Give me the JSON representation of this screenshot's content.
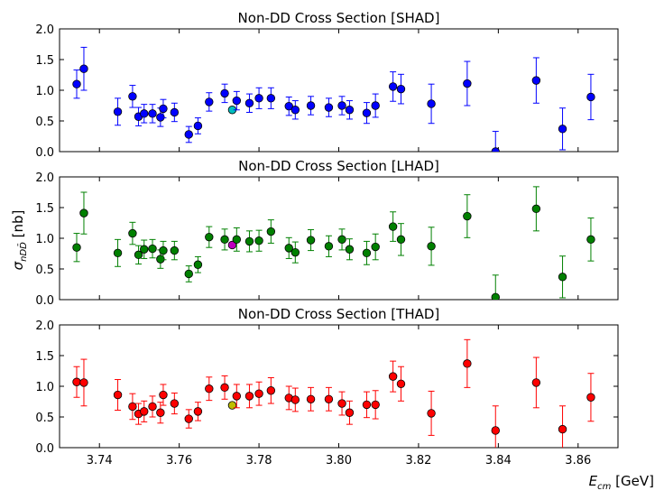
{
  "chart_data": [
    {
      "type": "scatter",
      "title": "Non-DD Cross Section [SHAD]",
      "ylim": [
        0,
        2.0
      ],
      "xlim": [
        3.73,
        3.87
      ],
      "color": "#0000ff",
      "highlight_color": "#00bfbf",
      "points": [
        {
          "x": 3.7343,
          "y": 1.1,
          "err": 0.23
        },
        {
          "x": 3.7361,
          "y": 1.35,
          "err": 0.35
        },
        {
          "x": 3.7446,
          "y": 0.65,
          "err": 0.22
        },
        {
          "x": 3.7483,
          "y": 0.9,
          "err": 0.18
        },
        {
          "x": 3.7498,
          "y": 0.57,
          "err": 0.15
        },
        {
          "x": 3.7512,
          "y": 0.62,
          "err": 0.15
        },
        {
          "x": 3.7533,
          "y": 0.62,
          "err": 0.15
        },
        {
          "x": 3.7553,
          "y": 0.56,
          "err": 0.15
        },
        {
          "x": 3.756,
          "y": 0.7,
          "err": 0.15
        },
        {
          "x": 3.7588,
          "y": 0.64,
          "err": 0.15
        },
        {
          "x": 3.7624,
          "y": 0.28,
          "err": 0.13
        },
        {
          "x": 3.7647,
          "y": 0.42,
          "err": 0.13
        },
        {
          "x": 3.7675,
          "y": 0.81,
          "err": 0.15
        },
        {
          "x": 3.7714,
          "y": 0.95,
          "err": 0.15
        },
        {
          "x": 3.7733,
          "y": 0.68,
          "err": 0.0,
          "highlight": true
        },
        {
          "x": 3.7744,
          "y": 0.83,
          "err": 0.15
        },
        {
          "x": 3.7776,
          "y": 0.79,
          "err": 0.15
        },
        {
          "x": 3.78,
          "y": 0.87,
          "err": 0.17
        },
        {
          "x": 3.783,
          "y": 0.87,
          "err": 0.17
        },
        {
          "x": 3.7875,
          "y": 0.74,
          "err": 0.15
        },
        {
          "x": 3.7891,
          "y": 0.68,
          "err": 0.15
        },
        {
          "x": 3.793,
          "y": 0.75,
          "err": 0.15
        },
        {
          "x": 3.7975,
          "y": 0.72,
          "err": 0.15
        },
        {
          "x": 3.8008,
          "y": 0.75,
          "err": 0.15
        },
        {
          "x": 3.8027,
          "y": 0.68,
          "err": 0.15
        },
        {
          "x": 3.807,
          "y": 0.63,
          "err": 0.17
        },
        {
          "x": 3.8092,
          "y": 0.75,
          "err": 0.19
        },
        {
          "x": 3.8136,
          "y": 1.06,
          "err": 0.24
        },
        {
          "x": 3.8156,
          "y": 1.02,
          "err": 0.24
        },
        {
          "x": 3.8232,
          "y": 0.78,
          "err": 0.32
        },
        {
          "x": 3.8322,
          "y": 1.11,
          "err": 0.36
        },
        {
          "x": 3.8393,
          "y": 0.0,
          "err": 0.33
        },
        {
          "x": 3.8495,
          "y": 1.16,
          "err": 0.37
        },
        {
          "x": 3.8561,
          "y": 0.37,
          "err": 0.34
        },
        {
          "x": 3.8632,
          "y": 0.89,
          "err": 0.37
        }
      ]
    },
    {
      "type": "scatter",
      "title": "Non-DD Cross Section [LHAD]",
      "ylim": [
        0,
        2.0
      ],
      "xlim": [
        3.73,
        3.87
      ],
      "color": "#008000",
      "highlight_color": "#bf00bf",
      "points": [
        {
          "x": 3.7343,
          "y": 0.85,
          "err": 0.23
        },
        {
          "x": 3.7361,
          "y": 1.41,
          "err": 0.34
        },
        {
          "x": 3.7446,
          "y": 0.76,
          "err": 0.22
        },
        {
          "x": 3.7483,
          "y": 1.08,
          "err": 0.18
        },
        {
          "x": 3.7498,
          "y": 0.73,
          "err": 0.15
        },
        {
          "x": 3.7512,
          "y": 0.82,
          "err": 0.15
        },
        {
          "x": 3.7533,
          "y": 0.83,
          "err": 0.15
        },
        {
          "x": 3.7553,
          "y": 0.66,
          "err": 0.15
        },
        {
          "x": 3.756,
          "y": 0.8,
          "err": 0.15
        },
        {
          "x": 3.7588,
          "y": 0.8,
          "err": 0.15
        },
        {
          "x": 3.7624,
          "y": 0.42,
          "err": 0.13
        },
        {
          "x": 3.7647,
          "y": 0.57,
          "err": 0.13
        },
        {
          "x": 3.7675,
          "y": 1.02,
          "err": 0.17
        },
        {
          "x": 3.7714,
          "y": 0.98,
          "err": 0.17
        },
        {
          "x": 3.7733,
          "y": 0.89,
          "err": 0.0,
          "highlight": true
        },
        {
          "x": 3.7744,
          "y": 0.98,
          "err": 0.19
        },
        {
          "x": 3.7776,
          "y": 0.95,
          "err": 0.17
        },
        {
          "x": 3.78,
          "y": 0.96,
          "err": 0.17
        },
        {
          "x": 3.783,
          "y": 1.11,
          "err": 0.19
        },
        {
          "x": 3.7875,
          "y": 0.84,
          "err": 0.17
        },
        {
          "x": 3.7891,
          "y": 0.77,
          "err": 0.17
        },
        {
          "x": 3.793,
          "y": 0.97,
          "err": 0.17
        },
        {
          "x": 3.7975,
          "y": 0.87,
          "err": 0.17
        },
        {
          "x": 3.8008,
          "y": 0.98,
          "err": 0.17
        },
        {
          "x": 3.8027,
          "y": 0.82,
          "err": 0.17
        },
        {
          "x": 3.807,
          "y": 0.76,
          "err": 0.19
        },
        {
          "x": 3.8092,
          "y": 0.86,
          "err": 0.21
        },
        {
          "x": 3.8136,
          "y": 1.19,
          "err": 0.24
        },
        {
          "x": 3.8156,
          "y": 0.98,
          "err": 0.26
        },
        {
          "x": 3.8232,
          "y": 0.87,
          "err": 0.31
        },
        {
          "x": 3.8322,
          "y": 1.36,
          "err": 0.35
        },
        {
          "x": 3.8393,
          "y": 0.04,
          "err": 0.36
        },
        {
          "x": 3.8495,
          "y": 1.48,
          "err": 0.36
        },
        {
          "x": 3.8561,
          "y": 0.37,
          "err": 0.34
        },
        {
          "x": 3.8632,
          "y": 0.98,
          "err": 0.35
        }
      ]
    },
    {
      "type": "scatter",
      "title": "Non-DD Cross Section [THAD]",
      "ylim": [
        0,
        2.0
      ],
      "xlim": [
        3.73,
        3.87
      ],
      "color": "#ff0000",
      "highlight_color": "#bfbf00",
      "points": [
        {
          "x": 3.7343,
          "y": 1.07,
          "err": 0.25
        },
        {
          "x": 3.7361,
          "y": 1.06,
          "err": 0.38
        },
        {
          "x": 3.7446,
          "y": 0.86,
          "err": 0.25
        },
        {
          "x": 3.7483,
          "y": 0.67,
          "err": 0.21
        },
        {
          "x": 3.7498,
          "y": 0.55,
          "err": 0.17
        },
        {
          "x": 3.7512,
          "y": 0.59,
          "err": 0.17
        },
        {
          "x": 3.7533,
          "y": 0.67,
          "err": 0.17
        },
        {
          "x": 3.7553,
          "y": 0.57,
          "err": 0.17
        },
        {
          "x": 3.756,
          "y": 0.86,
          "err": 0.17
        },
        {
          "x": 3.7588,
          "y": 0.72,
          "err": 0.17
        },
        {
          "x": 3.7624,
          "y": 0.47,
          "err": 0.15
        },
        {
          "x": 3.7647,
          "y": 0.59,
          "err": 0.15
        },
        {
          "x": 3.7675,
          "y": 0.96,
          "err": 0.19
        },
        {
          "x": 3.7714,
          "y": 0.98,
          "err": 0.19
        },
        {
          "x": 3.7733,
          "y": 0.69,
          "err": 0.0,
          "highlight": true
        },
        {
          "x": 3.7744,
          "y": 0.84,
          "err": 0.19
        },
        {
          "x": 3.7776,
          "y": 0.84,
          "err": 0.19
        },
        {
          "x": 3.78,
          "y": 0.88,
          "err": 0.19
        },
        {
          "x": 3.783,
          "y": 0.93,
          "err": 0.21
        },
        {
          "x": 3.7875,
          "y": 0.81,
          "err": 0.19
        },
        {
          "x": 3.7891,
          "y": 0.78,
          "err": 0.19
        },
        {
          "x": 3.793,
          "y": 0.79,
          "err": 0.19
        },
        {
          "x": 3.7975,
          "y": 0.79,
          "err": 0.19
        },
        {
          "x": 3.8008,
          "y": 0.72,
          "err": 0.19
        },
        {
          "x": 3.8027,
          "y": 0.57,
          "err": 0.19
        },
        {
          "x": 3.807,
          "y": 0.7,
          "err": 0.21
        },
        {
          "x": 3.8092,
          "y": 0.7,
          "err": 0.23
        },
        {
          "x": 3.8136,
          "y": 1.16,
          "err": 0.25
        },
        {
          "x": 3.8156,
          "y": 1.04,
          "err": 0.28
        },
        {
          "x": 3.8232,
          "y": 0.56,
          "err": 0.36
        },
        {
          "x": 3.8322,
          "y": 1.37,
          "err": 0.39
        },
        {
          "x": 3.8393,
          "y": 0.28,
          "err": 0.4
        },
        {
          "x": 3.8495,
          "y": 1.06,
          "err": 0.41
        },
        {
          "x": 3.8561,
          "y": 0.3,
          "err": 0.38
        },
        {
          "x": 3.8632,
          "y": 0.82,
          "err": 0.39
        }
      ]
    }
  ],
  "shared": {
    "x_ticks": [
      "3.74",
      "3.76",
      "3.78",
      "3.80",
      "3.82",
      "3.84",
      "3.86"
    ],
    "y_ticks": [
      "0.0",
      "0.5",
      "1.0",
      "1.5",
      "2.0"
    ],
    "xlabel_symbol": "E",
    "xlabel_sub": "cm",
    "xlabel_unit": "[GeV]",
    "ylabel_symbol": "σ",
    "ylabel_sub": "nDD̄",
    "ylabel_unit": "[nb]"
  }
}
